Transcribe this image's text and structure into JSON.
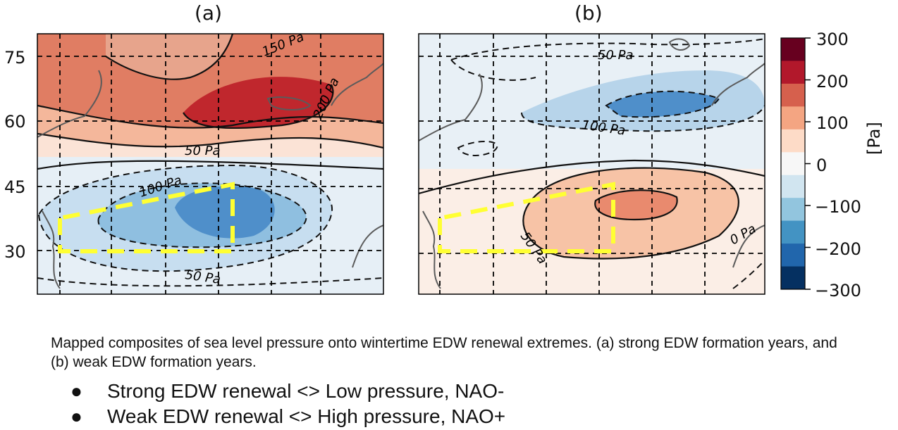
{
  "panels": [
    {
      "title": "(a)",
      "labels": [
        "150 Pa",
        "200 Pa",
        "50 Pa",
        "100 Pa",
        "50 Pa"
      ]
    },
    {
      "title": "(b)",
      "labels": [
        "50 Pa",
        "100 Pa",
        "50 Pa",
        "0 Pa"
      ]
    }
  ],
  "y_ticks": [
    "75",
    "60",
    "45",
    "30"
  ],
  "colorbar": {
    "ticks": [
      "300",
      "200",
      "100",
      "0",
      "−100",
      "−200",
      "−300"
    ],
    "unit": "[Pa]",
    "colors": [
      "#67001f",
      "#b2182b",
      "#d6604d",
      "#f4a582",
      "#fddbc7",
      "#f7f7f7",
      "#d1e5f0",
      "#92c5de",
      "#4393c3",
      "#2166ac",
      "#053061"
    ]
  },
  "caption": "Mapped composites of sea level pressure onto wintertime EDW renewal extremes. (a) strong EDW formation years, and (b) weak EDW formation years.",
  "bullets": [
    {
      "marker": "●",
      "text": "Strong EDW renewal <> Low pressure, NAO-"
    },
    {
      "marker": "●",
      "text": "Weak EDW renewal <> High pressure, NAO+"
    }
  ]
}
